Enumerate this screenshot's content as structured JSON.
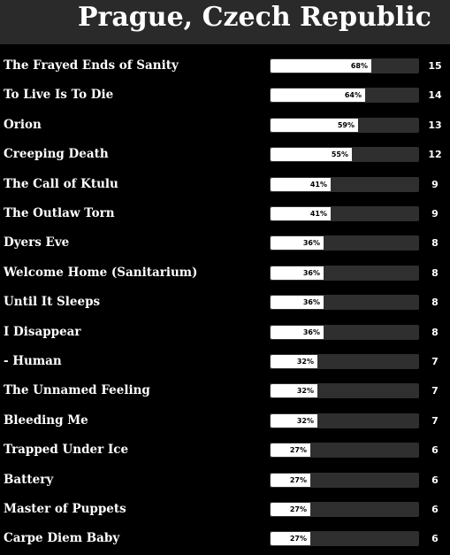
{
  "title": "Prague, Czech Republic",
  "colors": {
    "background": "#000000",
    "header": "#2b2a2a",
    "bar_track": "#2f2f2f",
    "bar_fill": "#ffffff"
  },
  "chart_data": {
    "type": "bar",
    "orientation": "horizontal",
    "title": "Prague, Czech Republic",
    "categories": [
      "The Frayed Ends of Sanity",
      "To Live Is To Die",
      "Orion",
      "Creeping Death",
      "The Call of Ktulu",
      "The Outlaw Torn",
      "Dyers Eve",
      "Welcome Home (Sanitarium)",
      "Until It Sleeps",
      "I Disappear",
      "- Human",
      "The Unnamed Feeling",
      "Bleeding Me",
      "Trapped Under Ice",
      "Battery",
      "Master of Puppets",
      "Carpe Diem Baby"
    ],
    "percent_labels": [
      "68%",
      "64%",
      "59%",
      "55%",
      "41%",
      "41%",
      "36%",
      "36%",
      "36%",
      "36%",
      "32%",
      "32%",
      "32%",
      "27%",
      "27%",
      "27%",
      "27%"
    ],
    "values": [
      68,
      64,
      59,
      55,
      41,
      41,
      36,
      36,
      36,
      36,
      32,
      32,
      32,
      27,
      27,
      27,
      27
    ],
    "counts": [
      15,
      14,
      13,
      12,
      9,
      9,
      8,
      8,
      8,
      8,
      7,
      7,
      7,
      6,
      6,
      6,
      6
    ],
    "xlim": [
      0,
      100
    ],
    "grid": false,
    "legend": "none"
  }
}
